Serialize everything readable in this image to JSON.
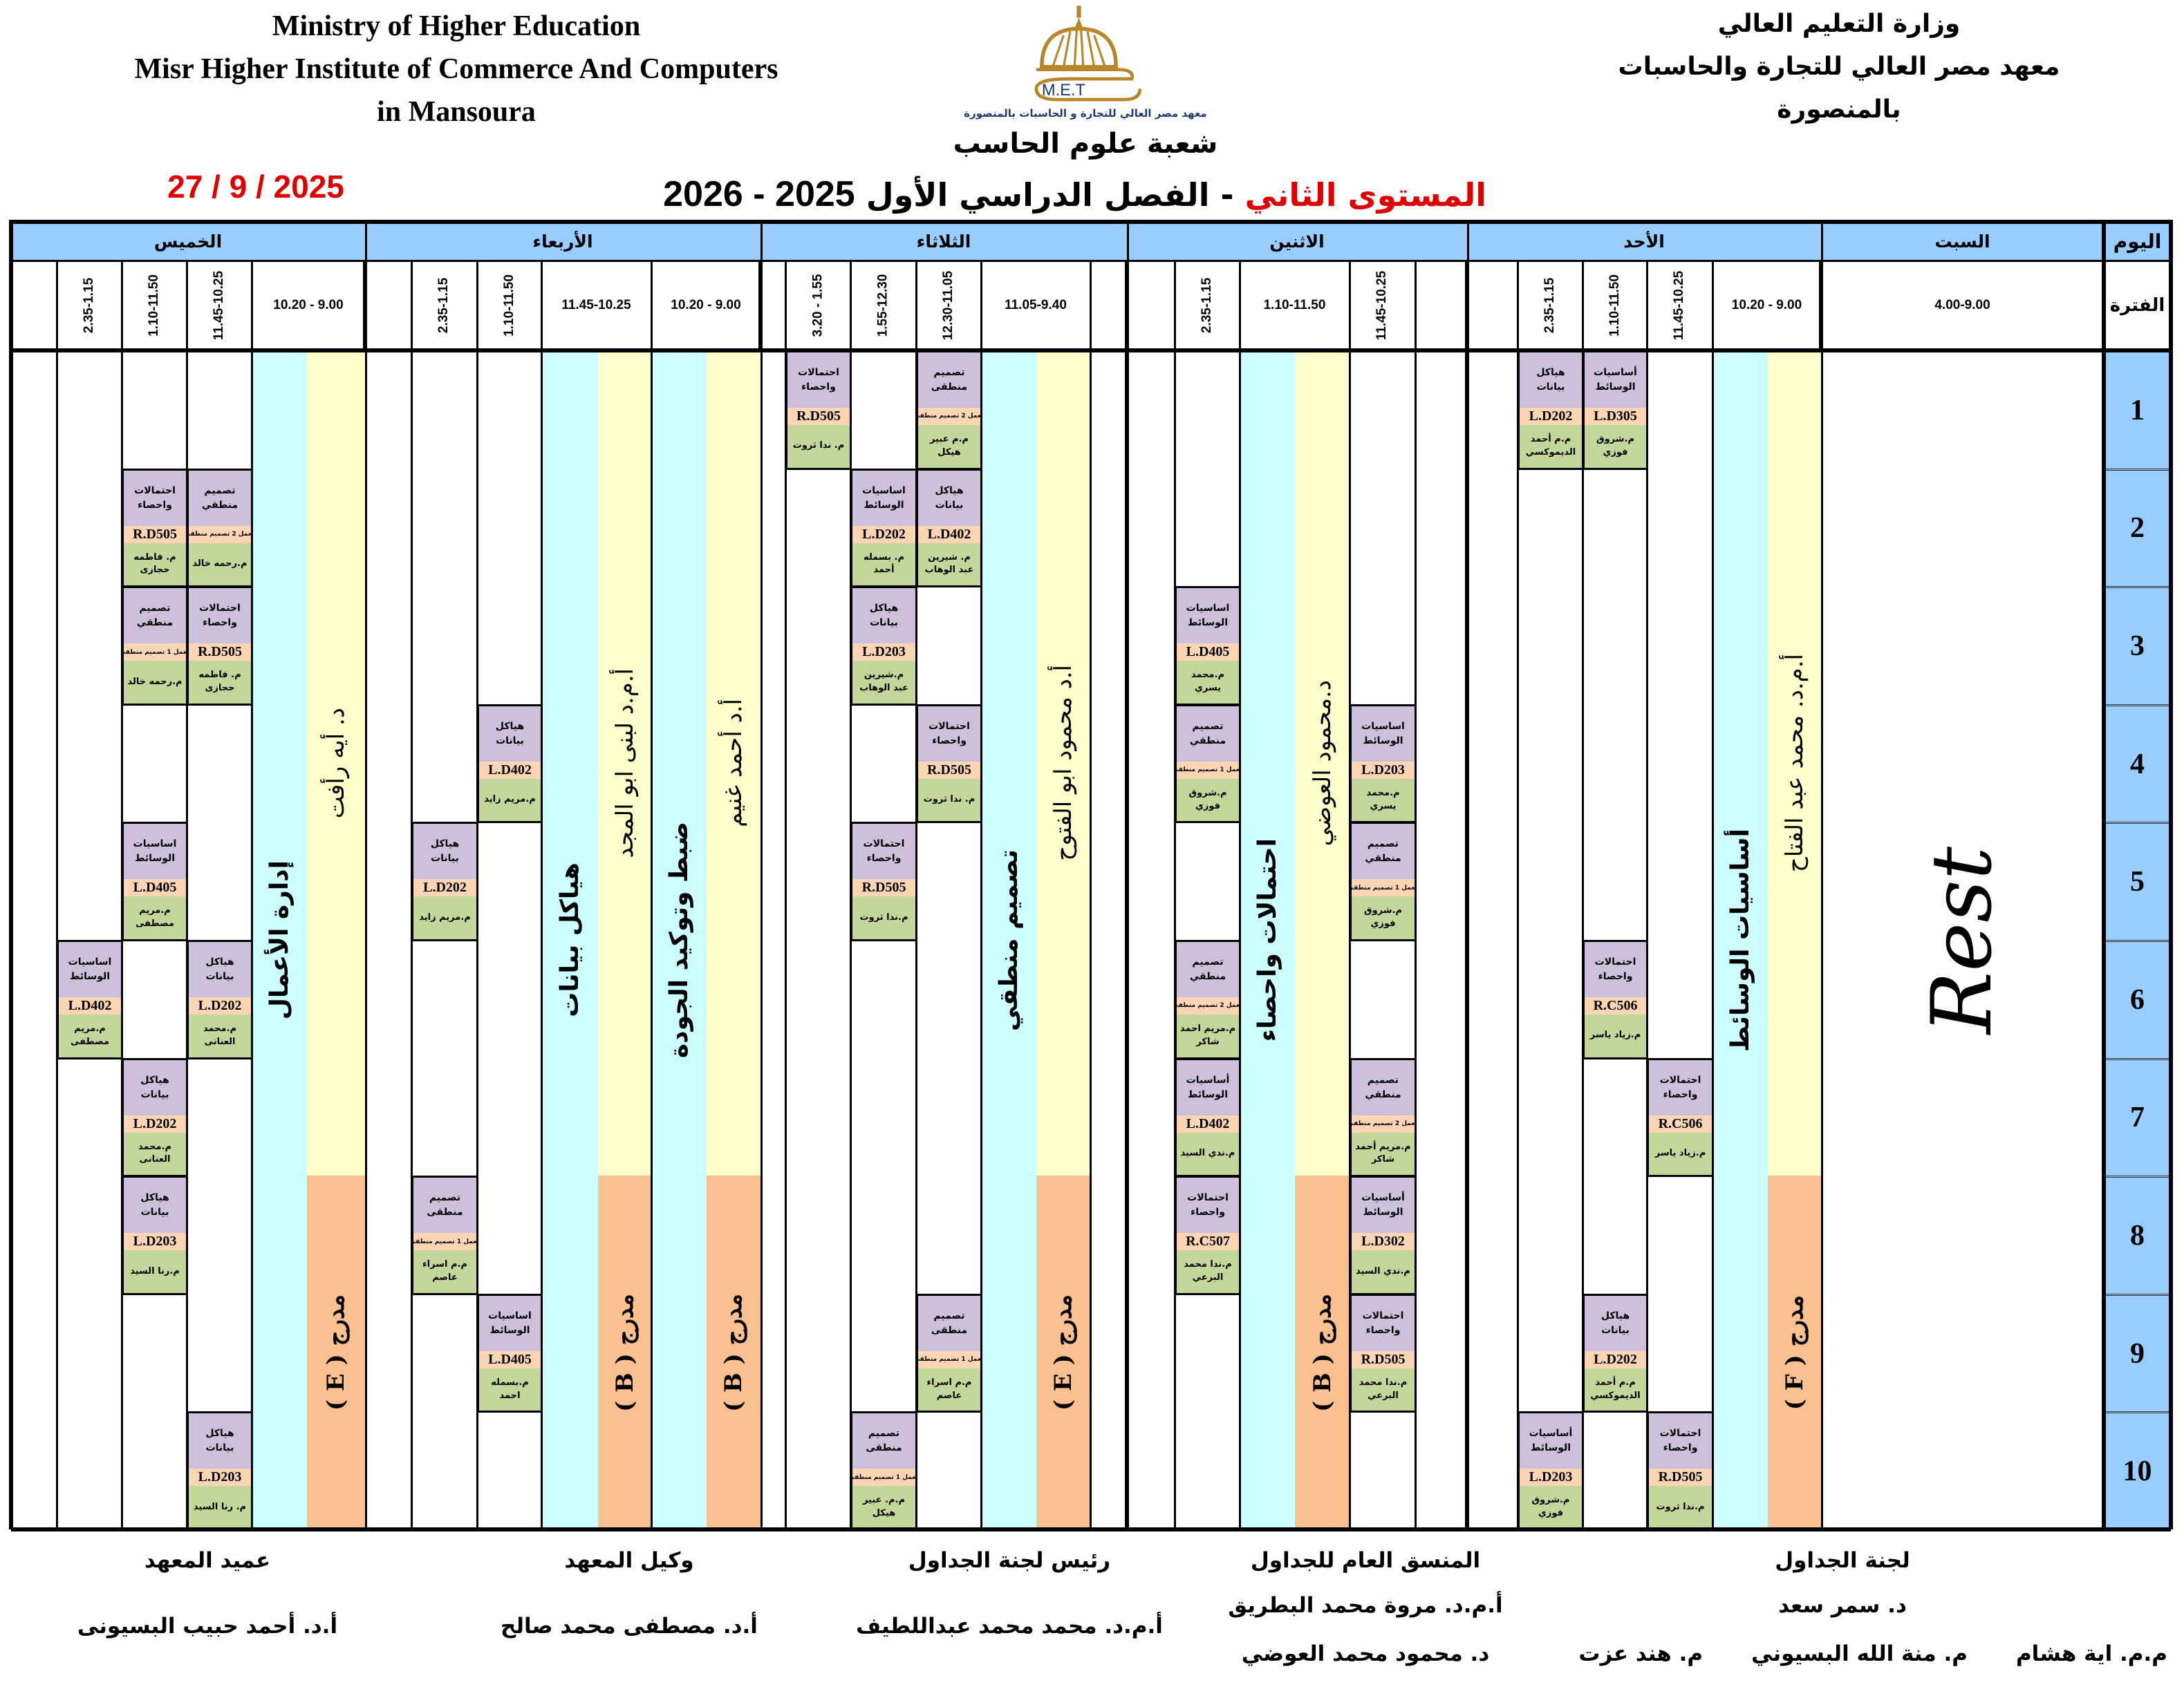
{
  "header": {
    "english_lines": [
      "Ministry of Higher Education",
      "Misr Higher Institute of Commerce And Computers",
      "in Mansoura"
    ],
    "arabic_lines": [
      "وزارة التعليم العالي",
      "معهد مصر العالي للتجارة والحاسبات",
      "بالمنصورة"
    ],
    "logo": {
      "letters": "M.E.T",
      "caption": "معهد مصر العالي للتجارة و الحاسبات بالمنصورة",
      "gold": "#b8862b",
      "navy": "#1f3a6e"
    },
    "department": "شعبة علوم الحاسب",
    "level": "المستوى الثاني",
    "semester": "- الفصل الدراسي الأول",
    "year": "2025 - 2026",
    "date": "27 / 9 / 2025"
  },
  "colors": {
    "day_header": "#99ccff",
    "course": "#ccc0da",
    "room": "#fcd5b4",
    "instructor": "#c4d79b",
    "lecture_course": "#ccffff",
    "lecturer": "#ffffcc",
    "hall": "#fac090",
    "red": "#e00000"
  },
  "grid": {
    "day_label": "اليوم",
    "period_label": "الفترة",
    "periods": [
      "1",
      "2",
      "3",
      "4",
      "5",
      "6",
      "7",
      "8",
      "9",
      "10"
    ]
  },
  "days": [
    {
      "name": "السبت",
      "rest": "Rest",
      "columns": [
        {
          "time": "4.00-9.00"
        }
      ],
      "sessions": []
    },
    {
      "name": "الأحد",
      "columns": [
        {
          "time": "10.20 - 9.00",
          "lecture": {
            "course": "أساسيات الوسائط",
            "lecturer": "أ.م.د. محمد عبد الفتاح",
            "hall": "مدرج ( F )"
          }
        },
        {
          "time": "11.45-10.25"
        },
        {
          "time": "1.10-11.50"
        },
        {
          "time": "2.35-1.15"
        },
        {
          "time": ""
        }
      ],
      "sessions": [
        {
          "col": 3,
          "row": 1,
          "course": "هياكل بيانات",
          "room": "L.D202",
          "instructor": "م.م أحمد الديموكسي"
        },
        {
          "col": 2,
          "row": 1,
          "course": "أساسيات الوسائط",
          "room": "L.D305",
          "instructor": "م.شروق فوزي"
        },
        {
          "col": 2,
          "row": 6,
          "course": "احتمالات واحصاء",
          "room": "R.C506",
          "instructor": "م.زياد ياسر"
        },
        {
          "col": 1,
          "row": 7,
          "course": "احتمالات واحصاء",
          "room": "R.C506",
          "instructor": "م.زياد ياسر"
        },
        {
          "col": 2,
          "row": 9,
          "course": "هياكل بيانات",
          "room": "L.D202",
          "instructor": "م.م أحمد الديموكسي"
        },
        {
          "col": 3,
          "row": 10,
          "course": "أساسيات الوسائط",
          "room": "L.D203",
          "instructor": "م.شروق فوزي"
        },
        {
          "col": 1,
          "row": 10,
          "course": "احتمالات واحصاء",
          "room": "R.D505",
          "instructor": "م.ندا ثروت"
        }
      ]
    },
    {
      "name": "الاثنين",
      "columns": [
        {
          "time": ""
        },
        {
          "time": "11.45-10.25"
        },
        {
          "time": "1.10-11.50",
          "lecture": {
            "course": "احتمالات واحصاء",
            "lecturer": "د.محمود العوضي",
            "hall": "مدرج ( B )"
          }
        },
        {
          "time": "2.35-1.15"
        },
        {
          "time": ""
        }
      ],
      "sessions": [
        {
          "col": 3,
          "row": 3,
          "course": "اساسيات الوسائط",
          "room": "L.D405",
          "instructor": "م.محمد يسري"
        },
        {
          "col": 3,
          "row": 4,
          "course": "تصميم منطقي",
          "room": "معمل 1 تصميم منطقي",
          "instructor": "م.شروق فوزي"
        },
        {
          "col": 1,
          "row": 4,
          "course": "اساسيات الوسائط",
          "room": "L.D203",
          "instructor": "م.محمد يسري"
        },
        {
          "col": 1,
          "row": 5,
          "course": "تصميم منطقي",
          "room": "معمل 1 تصميم منطقي",
          "instructor": "م.شروق فوزي"
        },
        {
          "col": 3,
          "row": 6,
          "course": "تصميم منطقي",
          "room": "معمل 2 تصميم منطقي",
          "instructor": "م.مريم احمد شاكر"
        },
        {
          "col": 3,
          "row": 7,
          "course": "أساسيات الوسائط",
          "room": "L.D402",
          "instructor": "م.ندي السيد"
        },
        {
          "col": 1,
          "row": 7,
          "course": "تصميم منطقي",
          "room": "معمل 2 تصميم منطقي",
          "instructor": "م.مريم أحمد شاكر"
        },
        {
          "col": 3,
          "row": 8,
          "course": "احتمالات واحصاء",
          "room": "R.C507",
          "instructor": "م.ندا محمد البرعي"
        },
        {
          "col": 1,
          "row": 8,
          "course": "أساسيات الوسائط",
          "room": "L.D302",
          "instructor": "م.ندي السيد"
        },
        {
          "col": 1,
          "row": 9,
          "course": "احتمالات واحصاء",
          "room": "R.D505",
          "instructor": "م.ندا محمد البرعي"
        }
      ]
    },
    {
      "name": "الثلاثاء",
      "columns": [
        {
          "time": ""
        },
        {
          "time": "11.05-9.40",
          "lecture": {
            "course": "تصميم منطقي",
            "lecturer": "أ.د محمود ابو الفتوح",
            "hall": "مدرج ( E )"
          }
        },
        {
          "time": "12.30-11.05"
        },
        {
          "time": "1.55-12.30"
        },
        {
          "time": "3.20 - 1.55"
        },
        {
          "time": ""
        }
      ],
      "sessions": [
        {
          "col": 4,
          "row": 1,
          "course": "احتمالات واحصاء",
          "room": "R.D505",
          "instructor": "م. ندا ثروت"
        },
        {
          "col": 2,
          "row": 1,
          "course": "تصميم منطقى",
          "room": "معمل 2 تصميم منطقي",
          "instructor": "م.م عبير هيكل"
        },
        {
          "col": 3,
          "row": 2,
          "course": "اساسيات الوسائط",
          "room": "L.D202",
          "instructor": "م. بسمله أحمد"
        },
        {
          "col": 2,
          "row": 2,
          "course": "هياكل بيانات",
          "room": "L.D402",
          "instructor": "م. شيرين عبد الوهاب"
        },
        {
          "col": 3,
          "row": 3,
          "course": "هياكل بيانات",
          "room": "L.D203",
          "instructor": "م.شيرين عبد الوهاب"
        },
        {
          "col": 2,
          "row": 4,
          "course": "احتمالات واحصاء",
          "room": "R.D505",
          "instructor": "م. ندا ثروت"
        },
        {
          "col": 3,
          "row": 5,
          "course": "احتمالات واحصاء",
          "room": "R.D505",
          "instructor": "م.ندا ثروت"
        },
        {
          "col": 2,
          "row": 9,
          "course": "تصميم منطقى",
          "room": "معمل 1 تصميم منطقي",
          "instructor": "م.م اسراء عاصم"
        },
        {
          "col": 3,
          "row": 10,
          "course": "تصميم منطقى",
          "room": "معمل 1 تصميم منطقي",
          "instructor": "م.م. عبير هيكل"
        }
      ]
    },
    {
      "name": "الأربعاء",
      "columns": [
        {
          "time": "10.20 - 9.00",
          "lecture": {
            "course": "ضبط وتوكيد الجودة",
            "lecturer": "أ.د أحمد غنيم",
            "hall": "مدرج ( B )"
          }
        },
        {
          "time": "11.45-10.25",
          "lecture": {
            "course": "هياكل بيانات",
            "lecturer": "أ.م.د لبنى ابو المجد",
            "hall": "مدرج ( B )"
          }
        },
        {
          "time": "1.10-11.50"
        },
        {
          "time": "2.35-1.15"
        },
        {
          "time": ""
        }
      ],
      "sessions": [
        {
          "col": 2,
          "row": 4,
          "course": "هياكل بيانات",
          "room": "L.D402",
          "instructor": "م.مريم زايد"
        },
        {
          "col": 3,
          "row": 5,
          "course": "هياكل بيانات",
          "room": "L.D202",
          "instructor": "م.مريم زايد"
        },
        {
          "col": 3,
          "row": 8,
          "course": "تصميم منطقى",
          "room": "معمل 1 تصميم منطقي",
          "instructor": "م.م اسراء عاصم"
        },
        {
          "col": 2,
          "row": 9,
          "course": "اساسيات الوسائط",
          "room": "L.D405",
          "instructor": "م.بسمله احمد"
        }
      ]
    },
    {
      "name": "الخميس",
      "columns": [
        {
          "time": "10.20 - 9.00",
          "lecture": {
            "course": "إدارة الأعمال",
            "lecturer": "د. أيه رأفت",
            "hall": "مدرج ( E )"
          }
        },
        {
          "time": "11.45-10.25"
        },
        {
          "time": "1.10-11.50"
        },
        {
          "time": "2.35-1.15"
        },
        {
          "time": ""
        }
      ],
      "sessions": [
        {
          "col": 2,
          "row": 2,
          "course": "احتمالات واحصاء",
          "room": "R.D505",
          "instructor": "م. فاطمه حجازى"
        },
        {
          "col": 1,
          "row": 2,
          "course": "تصميم منطقي",
          "room": "معمل 2 تصميم منطقي",
          "instructor": "م.رحمه خالد"
        },
        {
          "col": 2,
          "row": 3,
          "course": "تصميم منطقي",
          "room": "معمل 1 تصميم منطقي",
          "instructor": "م.رحمه خالد"
        },
        {
          "col": 1,
          "row": 3,
          "course": "احتمالات واحصاء",
          "room": "R.D505",
          "instructor": "م. فاطمه حجازى"
        },
        {
          "col": 2,
          "row": 5,
          "course": "اساسيات الوسائط",
          "room": "L.D405",
          "instructor": "م.مريم مصطفى"
        },
        {
          "col": 3,
          "row": 6,
          "course": "اساسيات الوسائط",
          "room": "L.D402",
          "instructor": "م.مريم مصطفى"
        },
        {
          "col": 1,
          "row": 6,
          "course": "هياكل بيانات",
          "room": "L.D202",
          "instructor": "م.محمد العنانى"
        },
        {
          "col": 2,
          "row": 7,
          "course": "هياكل بيانات",
          "room": "L.D202",
          "instructor": "م.محمد العنانى"
        },
        {
          "col": 2,
          "row": 8,
          "course": "هياكل بيانات",
          "room": "L.D203",
          "instructor": "م.رنا السيد"
        },
        {
          "col": 1,
          "row": 10,
          "course": "هياكل بيانات",
          "room": "L.D203",
          "instructor": "م. رنا السيد"
        }
      ]
    }
  ],
  "footer": {
    "committee": {
      "title": "لجنة الجداول",
      "head": "د. سمر سعد",
      "members": [
        "م.م. اية هشام",
        "م. منة الله البسيوني",
        "م. هند عزت"
      ]
    },
    "coordinator": {
      "title": "المنسق العام للجداول",
      "names": [
        "أ.م.د. مروة محمد البطريق",
        "د. محمود محمد العوضي"
      ]
    },
    "committee_head": {
      "title": "رئيس لجنة الجداول",
      "name": "أ.م.د. محمد محمد عبداللطيف"
    },
    "vice_dean": {
      "title": "وكيل المعهد",
      "name": "أ.د. مصطفى محمد صالح"
    },
    "dean": {
      "title": "عميد المعهد",
      "name": "أ.د. أحمد حبيب البسيونى"
    }
  }
}
